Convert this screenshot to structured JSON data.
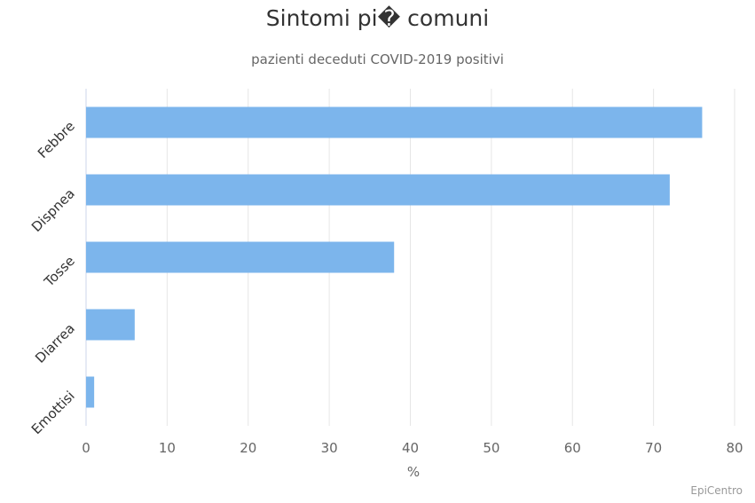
{
  "chart_data": {
    "type": "bar",
    "orientation": "horizontal",
    "title": "Sintomi pi� comuni",
    "subtitle": "pazienti deceduti COVID-2019 positivi",
    "categories": [
      "Febbre",
      "Dispnea",
      "Tosse",
      "Diarrea",
      "Emottisi"
    ],
    "values": [
      76,
      72,
      38,
      6,
      1
    ],
    "xlabel": "%",
    "xlim": [
      0,
      80
    ],
    "xticks": [
      0,
      10,
      20,
      30,
      40,
      50,
      60,
      70,
      80
    ],
    "grid": true,
    "legend": "none",
    "bar_color": "#7cb5ec"
  },
  "credit": "EpiCentro"
}
